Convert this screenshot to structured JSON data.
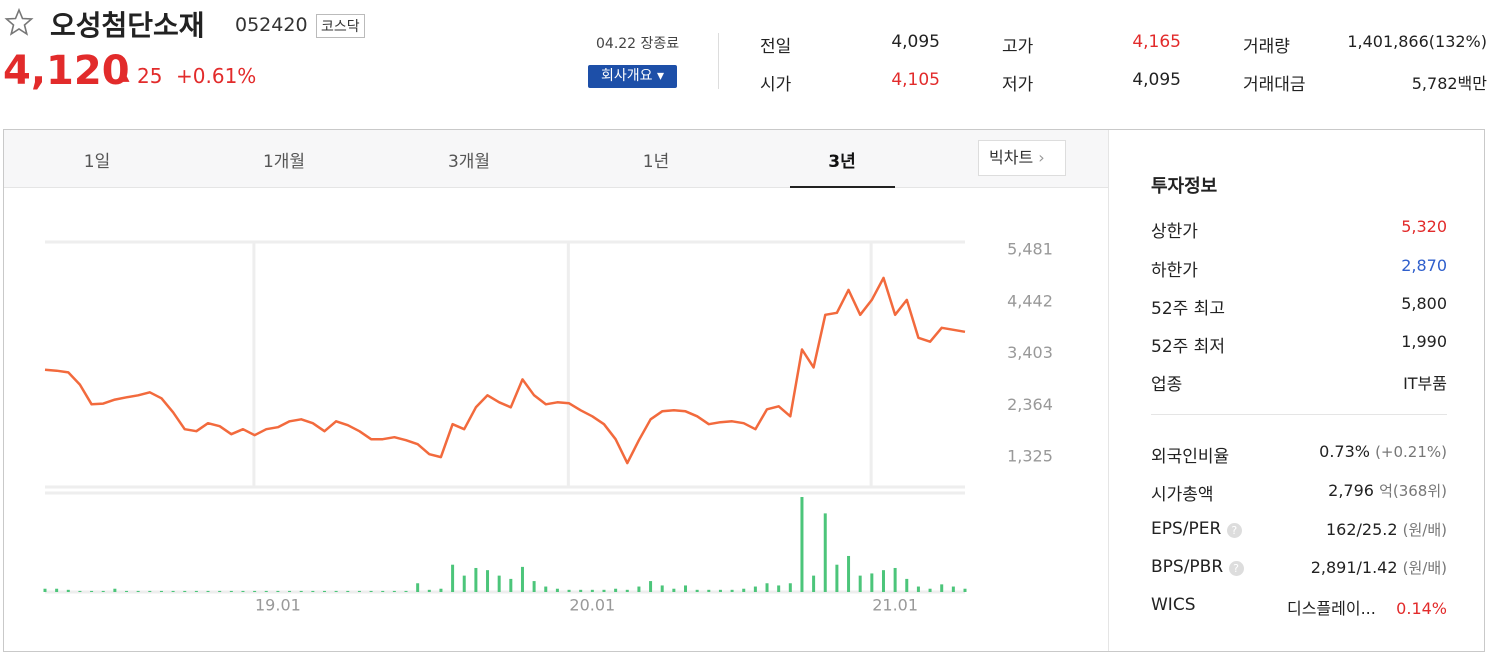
{
  "header": {
    "name": "오성첨단소재",
    "code": "052420",
    "market": "코스닥",
    "price": "4,120",
    "change": "25",
    "change_rate": "+0.61%",
    "date": "04.22 장종료",
    "company_button": "회사개요"
  },
  "quote": [
    {
      "label": "전일",
      "value": "4,095"
    },
    {
      "label": "시가",
      "value": "4,105"
    },
    {
      "label": "고가",
      "value": "4,165"
    },
    {
      "label": "저가",
      "value": "4,095"
    },
    {
      "label": "거래량",
      "value": "1,401,866(132%)"
    },
    {
      "label": "거래대금",
      "value": "5,782백만"
    }
  ],
  "tabs": [
    "1일",
    "1개월",
    "3개월",
    "1년",
    "3년"
  ],
  "big_chart": "빅차트",
  "chart_data": {
    "type": "line",
    "categories": [
      null,
      null,
      null,
      null,
      null,
      null,
      null,
      null,
      null,
      null,
      null,
      null,
      null,
      null,
      null,
      null,
      null,
      null,
      null,
      null,
      "19.01",
      null,
      null,
      null,
      null,
      null,
      null,
      null,
      null,
      null,
      null,
      null,
      null,
      null,
      null,
      null,
      null,
      null,
      null,
      null,
      null,
      null,
      null,
      null,
      null,
      null,
      null,
      "20.01",
      null,
      null,
      null,
      null,
      null,
      null,
      null,
      null,
      null,
      null,
      null,
      null,
      null,
      null,
      null,
      null,
      null,
      null,
      null,
      null,
      null,
      null,
      null,
      null,
      null,
      "21.01",
      null,
      null,
      null,
      null,
      null,
      null
    ],
    "series": [
      {
        "color": "#f26a3d",
        "values": [
          3080,
          3060,
          3025,
          2780,
          2385,
          2400,
          2480,
          2525,
          2565,
          2625,
          2505,
          2225,
          1885,
          1845,
          2005,
          1945,
          1785,
          1885,
          1765,
          1885,
          1925,
          2045,
          2085,
          2005,
          1845,
          2045,
          1965,
          1845,
          1685,
          1685,
          1725,
          1665,
          1585,
          1385,
          1325,
          1985,
          1885,
          2325,
          2565,
          2425,
          2325,
          2885,
          2565,
          2385,
          2425,
          2405,
          2265,
          2145,
          1985,
          1685,
          1205,
          1665,
          2085,
          2245,
          2265,
          2245,
          2145,
          1985,
          2025,
          2045,
          2005,
          1885,
          2285,
          2345,
          2145,
          3485,
          3125,
          4180,
          4220,
          4680,
          4180,
          4480,
          4920,
          4180,
          4480,
          3720,
          3640,
          3920,
          3880,
          3840
        ]
      }
    ],
    "volume": {
      "color": "#4cc57a",
      "values": [
        300000,
        300000,
        200000,
        100000,
        100000,
        100000,
        300000,
        100000,
        100000,
        100000,
        100000,
        100000,
        100000,
        100000,
        100000,
        100000,
        100000,
        100000,
        100000,
        100000,
        100000,
        100000,
        100000,
        100000,
        100000,
        100000,
        100000,
        100000,
        100000,
        100000,
        100000,
        100000,
        800000,
        200000,
        300000,
        2500000,
        1500000,
        2200000,
        2000000,
        1500000,
        1200000,
        2300000,
        1000000,
        500000,
        300000,
        200000,
        200000,
        200000,
        200000,
        300000,
        200000,
        500000,
        1000000,
        600000,
        300000,
        600000,
        200000,
        200000,
        200000,
        200000,
        300000,
        500000,
        800000,
        600000,
        800000,
        8700000,
        1500000,
        7200000,
        2500000,
        3300000,
        1500000,
        1700000,
        2000000,
        2200000,
        1200000,
        500000,
        300000,
        700000,
        500000,
        300000
      ]
    },
    "ylim": [
      726,
      5641
    ],
    "yticks": [
      {
        "value": 1325,
        "label": "1,325"
      },
      {
        "value": 2364,
        "label": "2,364"
      },
      {
        "value": 3403,
        "label": "3,403"
      },
      {
        "value": 4442,
        "label": "4,442"
      },
      {
        "value": 5481,
        "label": "5,481"
      }
    ]
  },
  "invest": {
    "title": "투자정보",
    "rows": [
      {
        "label": "상한가",
        "value": "5,320"
      },
      {
        "label": "하한가",
        "value": "2,870"
      },
      {
        "label": "52주 최고",
        "value": "5,800"
      },
      {
        "label": "52주 최저",
        "value": "1,990"
      },
      {
        "label": "업종",
        "value": "IT부품"
      }
    ],
    "rows2": [
      {
        "label": "외국인비율",
        "value": "0.73%",
        "note": "(+0.21%)"
      },
      {
        "label": "시가총액",
        "value": "2,796",
        "note": "억(368위)"
      },
      {
        "label": "EPS/PER",
        "value": "162/25.2",
        "note": "(원/배)"
      },
      {
        "label": "BPS/PBR",
        "value": "2,891/1.42",
        "note": "(원/배)"
      },
      {
        "label": "WICS",
        "value": "디스플레이...",
        "note": "0.14%"
      }
    ]
  }
}
